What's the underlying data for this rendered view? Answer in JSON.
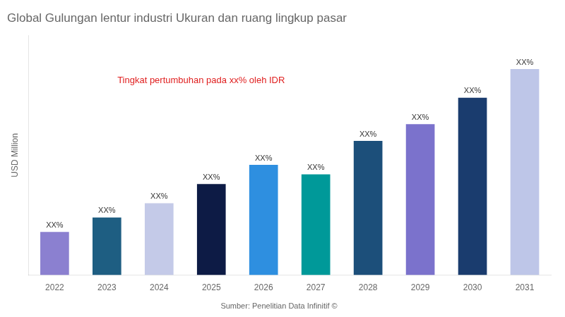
{
  "chart_data": {
    "type": "bar",
    "title": "Global Gulungan lentur industri Ukuran dan ruang lingkup pasar",
    "ylabel": "USD Million",
    "categories": [
      "2022",
      "2023",
      "2024",
      "2025",
      "2026",
      "2027",
      "2028",
      "2029",
      "2030",
      "2031"
    ],
    "values": [
      18,
      24,
      30,
      38,
      46,
      42,
      56,
      63,
      74,
      86
    ],
    "value_labels": [
      "XX%",
      "XX%",
      "XX%",
      "XX%",
      "XX%",
      "XX%",
      "XX%",
      "XX%",
      "XX%",
      "XX%"
    ],
    "colors": [
      "#8B80D0",
      "#1E5E82",
      "#C4CAE8",
      "#0D1B45",
      "#2E8FE0",
      "#009999",
      "#1C4F7A",
      "#7B72CC",
      "#1A3C6E",
      "#BEC6E8"
    ],
    "ylim": [
      0,
      100
    ],
    "grid": false,
    "tick_labels": "x",
    "annotations": [
      {
        "text": "Tingkat pertumbuhan pada xx% oleh IDR",
        "color": "#E02020"
      }
    ],
    "source": "Sumber: Penelitian Data Infinitif ©"
  }
}
